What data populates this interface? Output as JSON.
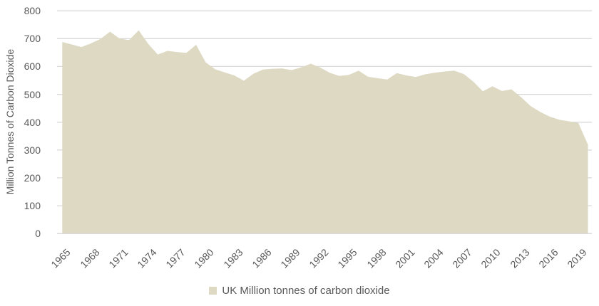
{
  "chart_data": {
    "type": "area",
    "title": "",
    "ylabel": "Million Tonnes of Carbon Dioxide",
    "xlabel": "",
    "ylim": [
      0,
      800
    ],
    "yticks": [
      0,
      100,
      200,
      300,
      400,
      500,
      600,
      700,
      800
    ],
    "xticks": [
      1965,
      1968,
      1971,
      1974,
      1977,
      1980,
      1983,
      1986,
      1989,
      1992,
      1995,
      1998,
      2001,
      2004,
      2007,
      2010,
      2013,
      2016,
      2019
    ],
    "x": [
      1965,
      1966,
      1967,
      1968,
      1969,
      1970,
      1971,
      1972,
      1973,
      1974,
      1975,
      1976,
      1977,
      1978,
      1979,
      1980,
      1981,
      1982,
      1983,
      1984,
      1985,
      1986,
      1987,
      1988,
      1989,
      1990,
      1991,
      1992,
      1993,
      1994,
      1995,
      1996,
      1997,
      1998,
      1999,
      2000,
      2001,
      2002,
      2003,
      2004,
      2005,
      2006,
      2007,
      2008,
      2009,
      2010,
      2011,
      2012,
      2013,
      2014,
      2015,
      2016,
      2017,
      2018,
      2019,
      2020
    ],
    "series": [
      {
        "name": "UK Million tonnes of carbon dioxide",
        "values": [
          688,
          679,
          670,
          683,
          699,
          725,
          700,
          695,
          730,
          681,
          643,
          656,
          652,
          649,
          678,
          615,
          590,
          579,
          568,
          549,
          574,
          589,
          592,
          593,
          587,
          597,
          610,
          596,
          577,
          566,
          570,
          585,
          563,
          558,
          553,
          576,
          568,
          562,
          572,
          578,
          582,
          585,
          573,
          546,
          511,
          529,
          512,
          518,
          490,
          458,
          437,
          420,
          409,
          403,
          397,
          319
        ]
      }
    ],
    "legend": [
      "UK Million tonnes of carbon dioxide"
    ],
    "legend_position": "bottom",
    "grid": "horizontal",
    "colors": {
      "fill": "#DDD9C3",
      "gridline": "#D9D9D9",
      "text": "#595959"
    }
  }
}
